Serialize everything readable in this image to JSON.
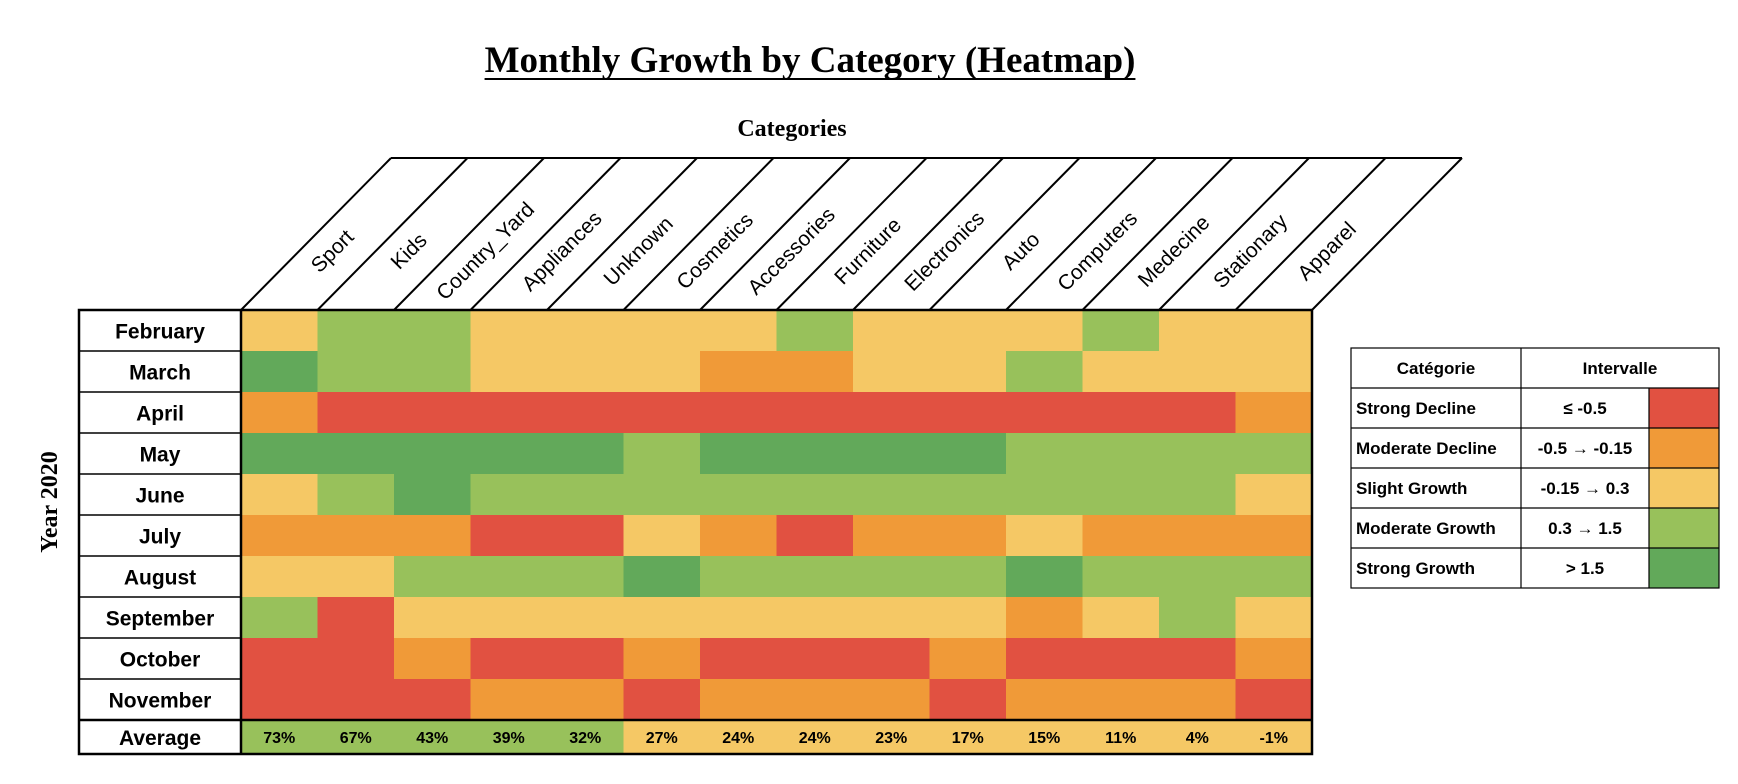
{
  "chart_data": {
    "type": "heatmap",
    "title": "Monthly Growth by Category (Heatmap)",
    "xlabel": "Categories",
    "ylabel": "Year  2020",
    "columns": [
      "Sport",
      "Kids",
      "Country_Yard",
      "Appliances",
      "Unknown",
      "Cosmetics",
      "Accessories",
      "Furniture",
      "Electronics",
      "Auto",
      "Computers",
      "Medecine",
      "Stationary",
      "Apparel"
    ],
    "rows": [
      "February",
      "March",
      "April",
      "May",
      "June",
      "July",
      "August",
      "September",
      "October",
      "November"
    ],
    "cell_classes": [
      [
        "SG",
        "MG",
        "MG",
        "SG",
        "SG",
        "SG",
        "SG",
        "MG",
        "SG",
        "SG",
        "SG",
        "MG",
        "SG",
        "SG"
      ],
      [
        "STG",
        "MG",
        "MG",
        "SG",
        "SG",
        "SG",
        "MD",
        "MD",
        "SG",
        "SG",
        "MG",
        "SG",
        "SG",
        "SG"
      ],
      [
        "MD",
        "SD",
        "SD",
        "SD",
        "SD",
        "SD",
        "SD",
        "SD",
        "SD",
        "SD",
        "SD",
        "SD",
        "SD",
        "MD"
      ],
      [
        "STG",
        "STG",
        "STG",
        "STG",
        "STG",
        "MG",
        "STG",
        "STG",
        "STG",
        "STG",
        "MG",
        "MG",
        "MG",
        "MG"
      ],
      [
        "SG",
        "MG",
        "STG",
        "MG",
        "MG",
        "MG",
        "MG",
        "MG",
        "MG",
        "MG",
        "MG",
        "MG",
        "MG",
        "SG"
      ],
      [
        "MD",
        "MD",
        "MD",
        "SD",
        "SD",
        "SG",
        "MD",
        "SD",
        "MD",
        "MD",
        "SG",
        "MD",
        "MD",
        "MD"
      ],
      [
        "SG",
        "SG",
        "MG",
        "MG",
        "MG",
        "STG",
        "MG",
        "MG",
        "MG",
        "MG",
        "STG",
        "MG",
        "MG",
        "MG"
      ],
      [
        "MG",
        "SD",
        "SG",
        "SG",
        "SG",
        "SG",
        "SG",
        "SG",
        "SG",
        "SG",
        "MD",
        "SG",
        "MG",
        "SG"
      ],
      [
        "SD",
        "SD",
        "MD",
        "SD",
        "SD",
        "MD",
        "SD",
        "SD",
        "SD",
        "MD",
        "SD",
        "SD",
        "SD",
        "MD"
      ],
      [
        "SD",
        "SD",
        "SD",
        "MD",
        "MD",
        "SD",
        "MD",
        "MD",
        "MD",
        "SD",
        "MD",
        "MD",
        "MD",
        "SD"
      ]
    ],
    "average": {
      "label": "Average",
      "values": [
        73,
        67,
        43,
        39,
        32,
        27,
        24,
        24,
        23,
        17,
        15,
        11,
        4,
        -1
      ],
      "display": [
        "73%",
        "67%",
        "43%",
        "39%",
        "32%",
        "27%",
        "24%",
        "24%",
        "23%",
        "17%",
        "15%",
        "11%",
        "4%",
        "-1%"
      ],
      "cell_classes": [
        "MG",
        "MG",
        "MG",
        "MG",
        "MG",
        "SG",
        "SG",
        "SG",
        "SG",
        "SG",
        "SG",
        "SG",
        "SG",
        "SG"
      ]
    },
    "legend": {
      "header_category": "Catégorie",
      "header_interval": "Intervalle",
      "items": [
        {
          "key": "SD",
          "label": "Strong Decline",
          "interval": "≤ -0.5",
          "color": "#E15141"
        },
        {
          "key": "MD",
          "label": "Moderate Decline",
          "interval": "-0.5 → -0.15",
          "color": "#F09A38"
        },
        {
          "key": "SG",
          "label": "Slight Growth",
          "interval": "-0.15  → 0.3",
          "color": "#F5C865"
        },
        {
          "key": "MG",
          "label": "Moderate Growth",
          "interval": "0.3  → 1.5",
          "color": "#98C15B"
        },
        {
          "key": "STG",
          "label": "Strong Growth",
          "interval": "> 1.5",
          "color": "#62A95A"
        }
      ]
    }
  }
}
